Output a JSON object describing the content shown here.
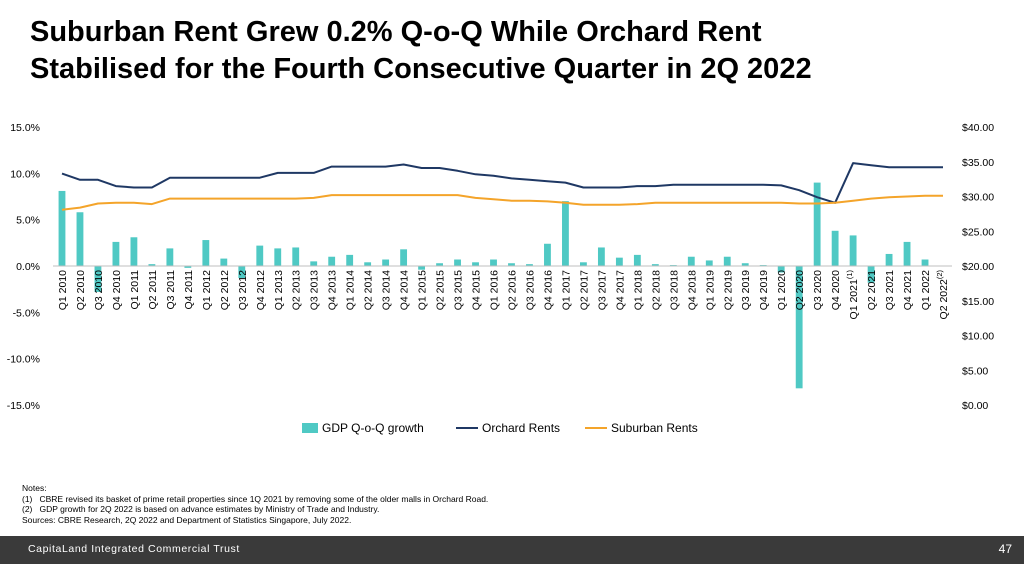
{
  "title_lines": [
    "Suburban Rent Grew 0.2% Q-o-Q While Orchard Rent",
    "Stabilised for the Fourth Consecutive Quarter in 2Q 2022"
  ],
  "chart_data": {
    "type": "bar+line",
    "categories": [
      "Q1 2010",
      "Q2 2010",
      "Q3 2010",
      "Q4 2010",
      "Q1 2011",
      "Q2 2011",
      "Q3 2011",
      "Q4 2011",
      "Q1 2012",
      "Q2 2012",
      "Q3 2012",
      "Q4 2012",
      "Q1 2013",
      "Q2 2013",
      "Q3 2013",
      "Q4 2013",
      "Q1 2014",
      "Q2 2014",
      "Q3 2014",
      "Q4 2014",
      "Q1 2015",
      "Q2 2015",
      "Q3 2015",
      "Q4 2015",
      "Q1 2016",
      "Q2 2016",
      "Q3 2016",
      "Q4 2016",
      "Q1 2017",
      "Q2 2017",
      "Q3 2017",
      "Q4 2017",
      "Q1 2018",
      "Q2 2018",
      "Q3 2018",
      "Q4 2018",
      "Q1 2019",
      "Q2 2019",
      "Q3 2019",
      "Q4 2019",
      "Q1 2020",
      "Q2 2020",
      "Q3 2020",
      "Q4 2020",
      "Q1 2021",
      "Q2 2021",
      "Q3 2021",
      "Q4 2021",
      "Q1 2022",
      "Q2 2022"
    ],
    "category_superscripts": {
      "Q1 2021": "(1)",
      "Q2 2022": "(2)"
    },
    "series": [
      {
        "name": "GDP Q-o-Q growth",
        "type": "bar",
        "axis": "left",
        "color": "#4fc9c4",
        "values": [
          8.1,
          5.8,
          -2.8,
          2.6,
          3.1,
          0.2,
          1.9,
          -0.2,
          2.8,
          0.8,
          -1.3,
          2.2,
          1.9,
          2.0,
          0.5,
          1.0,
          1.2,
          0.4,
          0.7,
          1.8,
          -0.4,
          0.3,
          0.7,
          0.4,
          0.7,
          0.3,
          0.2,
          2.4,
          7.0,
          0.4,
          2.0,
          0.9,
          1.2,
          0.2,
          0.1,
          1.0,
          0.6,
          1.0,
          0.3,
          0.1,
          -0.7,
          -13.2,
          9.0,
          3.8,
          3.3,
          -1.8,
          1.3,
          2.6,
          0.7,
          0.0
        ]
      },
      {
        "name": "Orchard Rents",
        "type": "line",
        "axis": "right",
        "color": "#1f3864",
        "values": [
          33.3,
          32.4,
          32.4,
          31.5,
          31.3,
          31.3,
          32.7,
          32.7,
          32.7,
          32.7,
          32.7,
          32.7,
          33.4,
          33.4,
          33.4,
          34.3,
          34.3,
          34.3,
          34.3,
          34.6,
          34.1,
          34.1,
          33.7,
          33.2,
          33.0,
          32.6,
          32.4,
          32.2,
          32.0,
          31.3,
          31.3,
          31.3,
          31.5,
          31.5,
          31.7,
          31.7,
          31.7,
          31.7,
          31.7,
          31.7,
          31.6,
          30.9,
          29.9,
          29.1,
          34.8,
          34.5,
          34.2,
          34.2,
          34.2,
          34.2
        ]
      },
      {
        "name": "Suburban Rents",
        "type": "line",
        "axis": "right",
        "color": "#f4a42a",
        "values": [
          28.1,
          28.4,
          29.0,
          29.1,
          29.1,
          28.9,
          29.7,
          29.7,
          29.7,
          29.7,
          29.7,
          29.7,
          29.7,
          29.7,
          29.8,
          30.2,
          30.2,
          30.2,
          30.2,
          30.2,
          30.2,
          30.2,
          30.2,
          29.8,
          29.6,
          29.4,
          29.4,
          29.3,
          29.1,
          28.8,
          28.8,
          28.8,
          28.9,
          29.1,
          29.1,
          29.1,
          29.1,
          29.1,
          29.1,
          29.1,
          29.1,
          29.0,
          29.0,
          29.1,
          29.4,
          29.7,
          29.9,
          30.0,
          30.1,
          30.1
        ]
      }
    ],
    "left_axis": {
      "min": -15,
      "max": 15,
      "ticks": [
        "15.0%",
        "10.0%",
        "5.0%",
        "0.0%",
        "-5.0%",
        "-10.0%",
        "-15.0%"
      ],
      "tick_values": [
        15,
        10,
        5,
        0,
        -5,
        -10,
        -15
      ]
    },
    "right_axis": {
      "min": 0,
      "max": 40,
      "ticks": [
        "$40.00",
        "$35.00",
        "$30.00",
        "$25.00",
        "$20.00",
        "$15.00",
        "$10.00",
        "$5.00",
        "$0.00"
      ],
      "tick_values": [
        40,
        35,
        30,
        25,
        20,
        15,
        10,
        5,
        0
      ]
    },
    "legend": {
      "placement": "bottom",
      "items": [
        "GDP Q-o-Q growth",
        "Orchard Rents",
        "Suburban Rents"
      ]
    },
    "grid": false
  },
  "notes": [
    "Notes:",
    "(1)   CBRE revised its basket of prime retail properties since 1Q 2021 by removing some of the older malls in Orchard Road.",
    "(2)   GDP growth for 2Q 2022 is based on advance estimates by Ministry of Trade and Industry.",
    "Sources: CBRE Research, 2Q 2022 and Department of Statistics Singapore, July 2022."
  ],
  "footer": {
    "company": "CapitaLand Integrated Commercial Trust",
    "page_number": "47"
  }
}
